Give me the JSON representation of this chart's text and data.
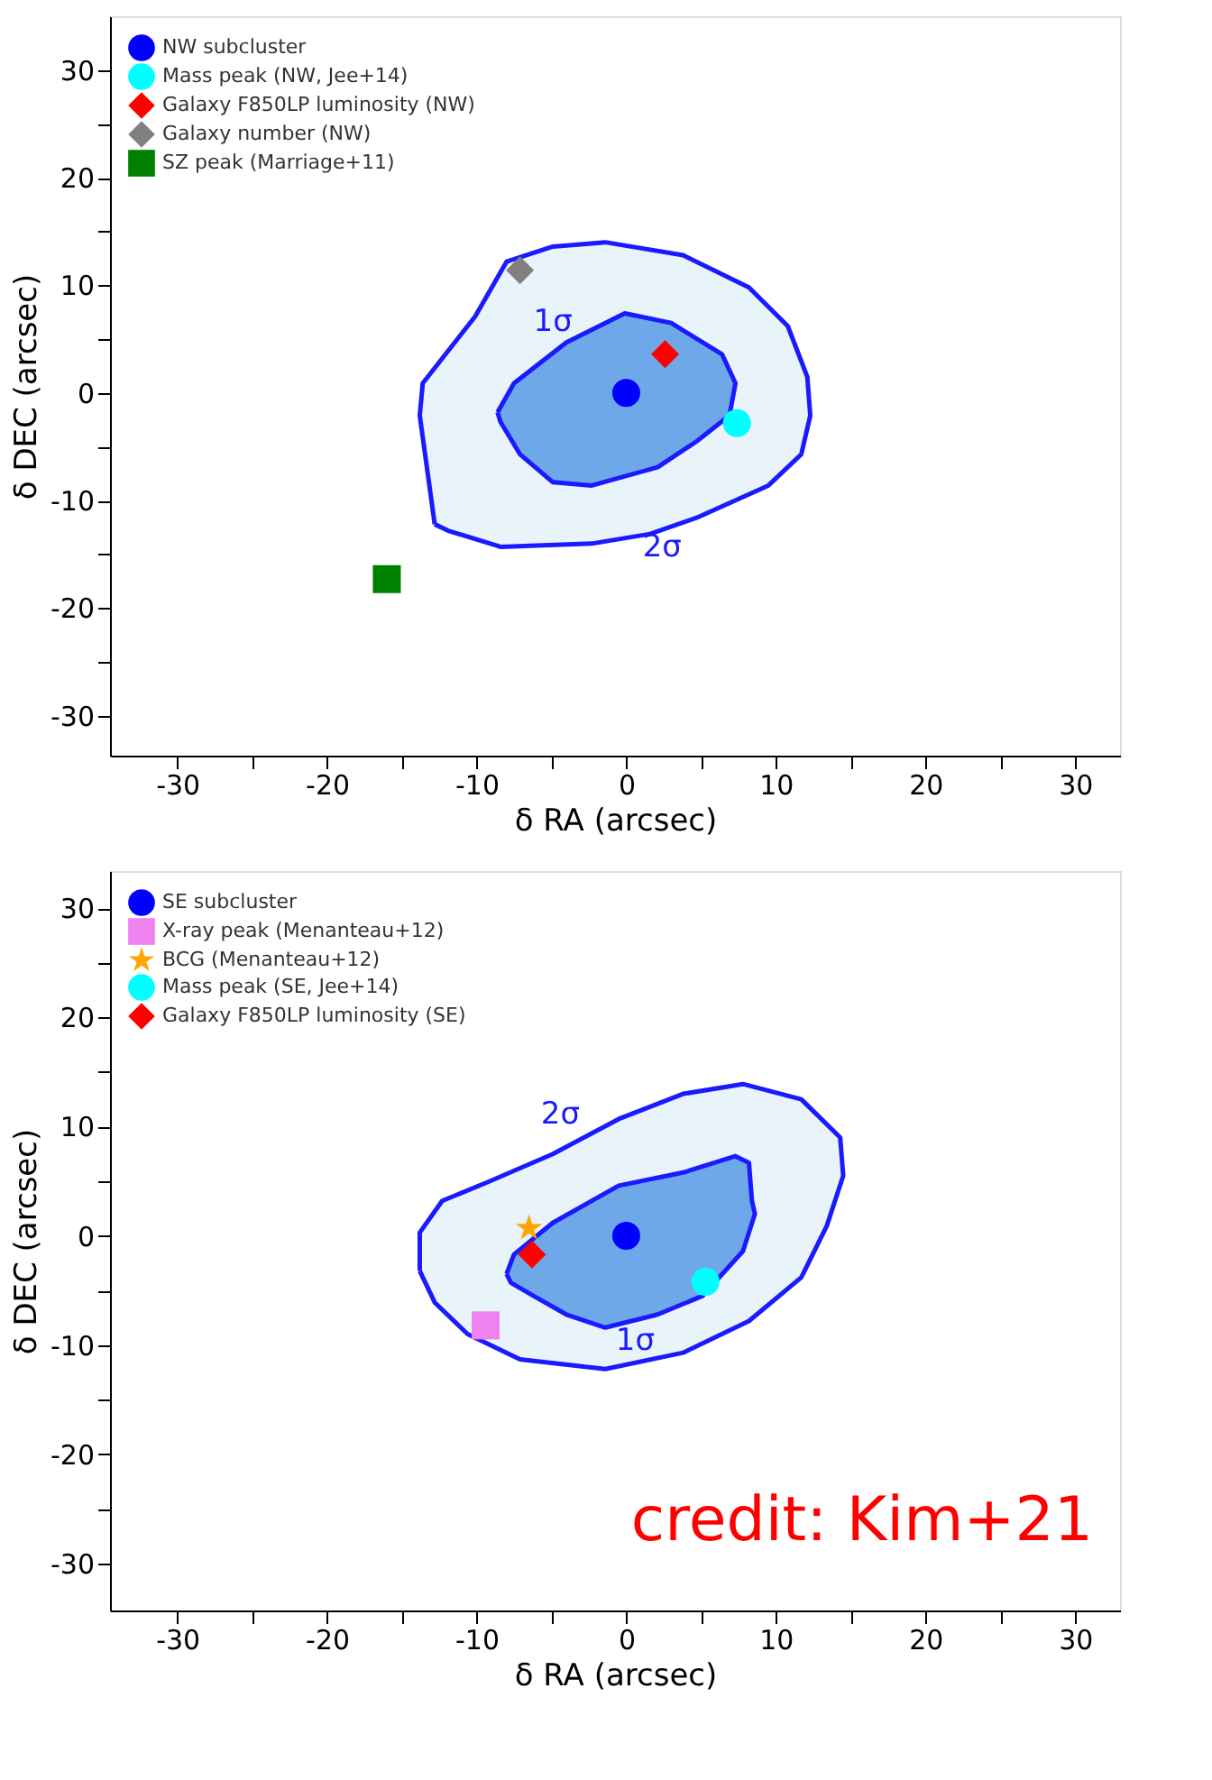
{
  "chart_data": [
    {
      "type": "scatter",
      "xlabel": "δ RA (arcsec)",
      "ylabel": "δ DEC (arcsec)",
      "xlim": [
        -34.5,
        33
      ],
      "ylim": [
        -33.7,
        35
      ],
      "xticks": [
        -30,
        {
          "value": -25,
          "label": null
        },
        -20,
        {
          "value": -15,
          "label": null
        },
        -10,
        {
          "value": -5,
          "label": null
        },
        0,
        {
          "value": 5,
          "label": null
        },
        10,
        {
          "value": 15,
          "label": null
        },
        20,
        {
          "value": 25,
          "label": null
        },
        30
      ],
      "yticks": [
        -30,
        {
          "value": -25,
          "label": null
        },
        -20,
        {
          "value": -15,
          "label": null
        },
        -10,
        {
          "value": -5,
          "label": null
        },
        0,
        {
          "value": 5,
          "label": null
        },
        10,
        {
          "value": 15,
          "label": null
        },
        20,
        {
          "value": 25,
          "label": null
        },
        30
      ],
      "grid": false,
      "legend": "top left",
      "series": [
        {
          "type": "area",
          "color": "#e8f3fa",
          "x": [
            -12.8,
            -13.8,
            -13.6,
            -10.1,
            -8.0,
            -4.9,
            -1.4,
            3.8,
            8.2,
            10.8,
            12.1,
            12.3,
            11.7,
            9.5,
            4.7,
            1.6,
            -2.3,
            -8.4,
            -11.9,
            -12.8
          ],
          "values": [
            -12.2,
            -2.1,
            0.9,
            7.1,
            12.2,
            13.6,
            14.0,
            12.8,
            9.8,
            6.2,
            1.5,
            -2.1,
            -5.7,
            -8.6,
            -11.6,
            -13.1,
            -14.0,
            -14.3,
            -12.8,
            -12.2
          ]
        },
        {
          "type": "area",
          "color": "#6ea8e8",
          "x": [
            -8.6,
            -7.5,
            -4.0,
            -0.1,
            3.0,
            6.4,
            7.3,
            6.9,
            4.7,
            2.1,
            -2.3,
            -4.9,
            -7.1,
            -8.4,
            -8.6
          ],
          "values": [
            -1.8,
            0.9,
            4.7,
            7.4,
            6.5,
            3.6,
            0.9,
            -2.1,
            -4.5,
            -6.9,
            -8.6,
            -8.3,
            -5.7,
            -2.7,
            -1.8
          ]
        },
        {
          "name": "NW subcluster",
          "marker": "circle",
          "color": "#0000ff",
          "x": [
            0
          ],
          "values": [
            0
          ]
        },
        {
          "name": "Mass peak (NW, Jee+14)",
          "marker": "circle",
          "color": "#00ffff",
          "x": [
            7.4
          ],
          "values": [
            -2.8
          ]
        },
        {
          "name": "Galaxy F850LP luminosity (NW)",
          "marker": "diamond",
          "color": "#ff0000",
          "x": [
            2.6
          ],
          "values": [
            3.6
          ]
        },
        {
          "name": "Galaxy number (NW)",
          "marker": "diamond",
          "color": "#808080",
          "x": [
            -7.1
          ],
          "values": [
            11.4
          ]
        },
        {
          "name": "SZ peak (Marriage+11)",
          "marker": "square",
          "color": "#008000",
          "x": [
            -16.0
          ],
          "values": [
            -17.3
          ]
        }
      ],
      "annotations": [
        {
          "text": "1σ",
          "x": -4.9,
          "y": 4.4
        },
        {
          "text": "2σ",
          "x": 2.4,
          "y": -12.2
        }
      ]
    },
    {
      "type": "scatter",
      "xlabel": "δ RA (arcsec)",
      "ylabel": "δ DEC (arcsec)",
      "xlim": [
        -34.5,
        33
      ],
      "ylim": [
        -34.3,
        33.4
      ],
      "xticks": [
        -30,
        {
          "value": -25,
          "label": null
        },
        -20,
        {
          "value": -15,
          "label": null
        },
        -10,
        {
          "value": -5,
          "label": null
        },
        0,
        {
          "value": 5,
          "label": null
        },
        10,
        {
          "value": 15,
          "label": null
        },
        20,
        {
          "value": 25,
          "label": null
        },
        30
      ],
      "yticks": [
        -30,
        {
          "value": -25,
          "label": null
        },
        -20,
        {
          "value": -15,
          "label": null
        },
        -10,
        {
          "value": -5,
          "label": null
        },
        0,
        {
          "value": 5,
          "label": null
        },
        10,
        {
          "value": 15,
          "label": null
        },
        20,
        {
          "value": 25,
          "label": null
        },
        30
      ],
      "grid": false,
      "legend": "top left",
      "series": [
        {
          "type": "area",
          "color": "#e8f3fa",
          "x": [
            -13.8,
            -13.8,
            -12.3,
            -9.3,
            -4.9,
            -0.5,
            3.8,
            7.8,
            11.7,
            14.3,
            14.5,
            13.4,
            11.7,
            8.2,
            3.8,
            -1.4,
            -7.1,
            -10.6,
            -12.8,
            -13.8
          ],
          "values": [
            -3.2,
            0.3,
            3.2,
            4.9,
            7.5,
            10.7,
            13.0,
            13.9,
            12.5,
            9.0,
            5.5,
            0.9,
            -3.8,
            -7.8,
            -10.7,
            -12.2,
            -11.3,
            -9.0,
            -6.1,
            -3.2
          ]
        },
        {
          "type": "area",
          "color": "#6ea8e8",
          "x": [
            -8.0,
            -7.5,
            -4.9,
            -0.5,
            3.8,
            7.3,
            8.2,
            8.4,
            8.6,
            7.8,
            5.1,
            2.1,
            -1.4,
            -4.0,
            -6.2,
            -7.7,
            -8.0
          ],
          "values": [
            -3.5,
            -1.7,
            1.2,
            4.6,
            5.8,
            7.3,
            6.7,
            3.2,
            2.0,
            -1.4,
            -5.5,
            -7.2,
            -8.4,
            -7.2,
            -5.5,
            -4.3,
            -3.5
          ]
        },
        {
          "name": "SE subcluster",
          "marker": "circle",
          "color": "#0000ff",
          "x": [
            0
          ],
          "values": [
            0
          ]
        },
        {
          "name": "X-ray peak (Menanteau+12)",
          "marker": "square",
          "color": "#ee82ee",
          "x": [
            -9.4
          ],
          "values": [
            -8.2
          ]
        },
        {
          "name": "BCG (Menanteau+12)",
          "marker": "star",
          "color": "#ffa500",
          "x": [
            -6.5
          ],
          "values": [
            0.7
          ]
        },
        {
          "name": "Mass peak (SE, Jee+14)",
          "marker": "circle",
          "color": "#00ffff",
          "x": [
            5.3
          ],
          "values": [
            -4.2
          ]
        },
        {
          "name": "Galaxy F850LP luminosity (SE)",
          "marker": "diamond",
          "color": "#ff0000",
          "x": [
            -6.3
          ],
          "values": [
            -1.7
          ]
        }
      ],
      "annotations": [
        {
          "text": "2σ",
          "x": -4.4,
          "y": 9.0
        },
        {
          "text": "1σ",
          "x": 0.6,
          "y": -7.5
        },
        "credit: Kim+21"
      ]
    }
  ]
}
